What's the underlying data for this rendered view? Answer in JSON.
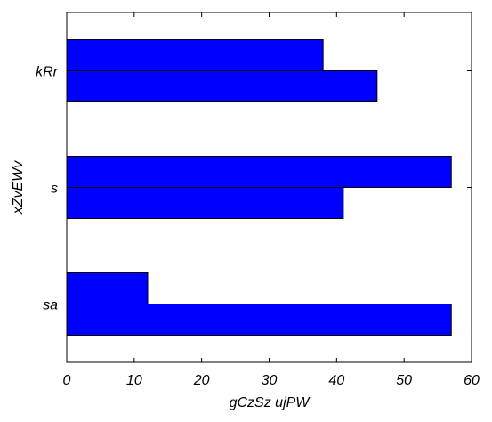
{
  "chart_data": {
    "type": "bar",
    "orientation": "horizontal",
    "categories": [
      "kRr",
      "s",
      "sa"
    ],
    "series": [
      {
        "values": [
          38,
          57,
          12
        ],
        "color": "#0000ff"
      },
      {
        "values": [
          46,
          41,
          57
        ],
        "color": "#0000ff"
      }
    ],
    "xlabel": "gCzSz ujPW",
    "ylabel": "xZvEWv",
    "xlim": [
      0,
      60
    ],
    "xticks": [
      0,
      10,
      20,
      30,
      40,
      50,
      60
    ],
    "grid": false,
    "bar_color": "#0000ff",
    "edge_color": "#000000"
  }
}
